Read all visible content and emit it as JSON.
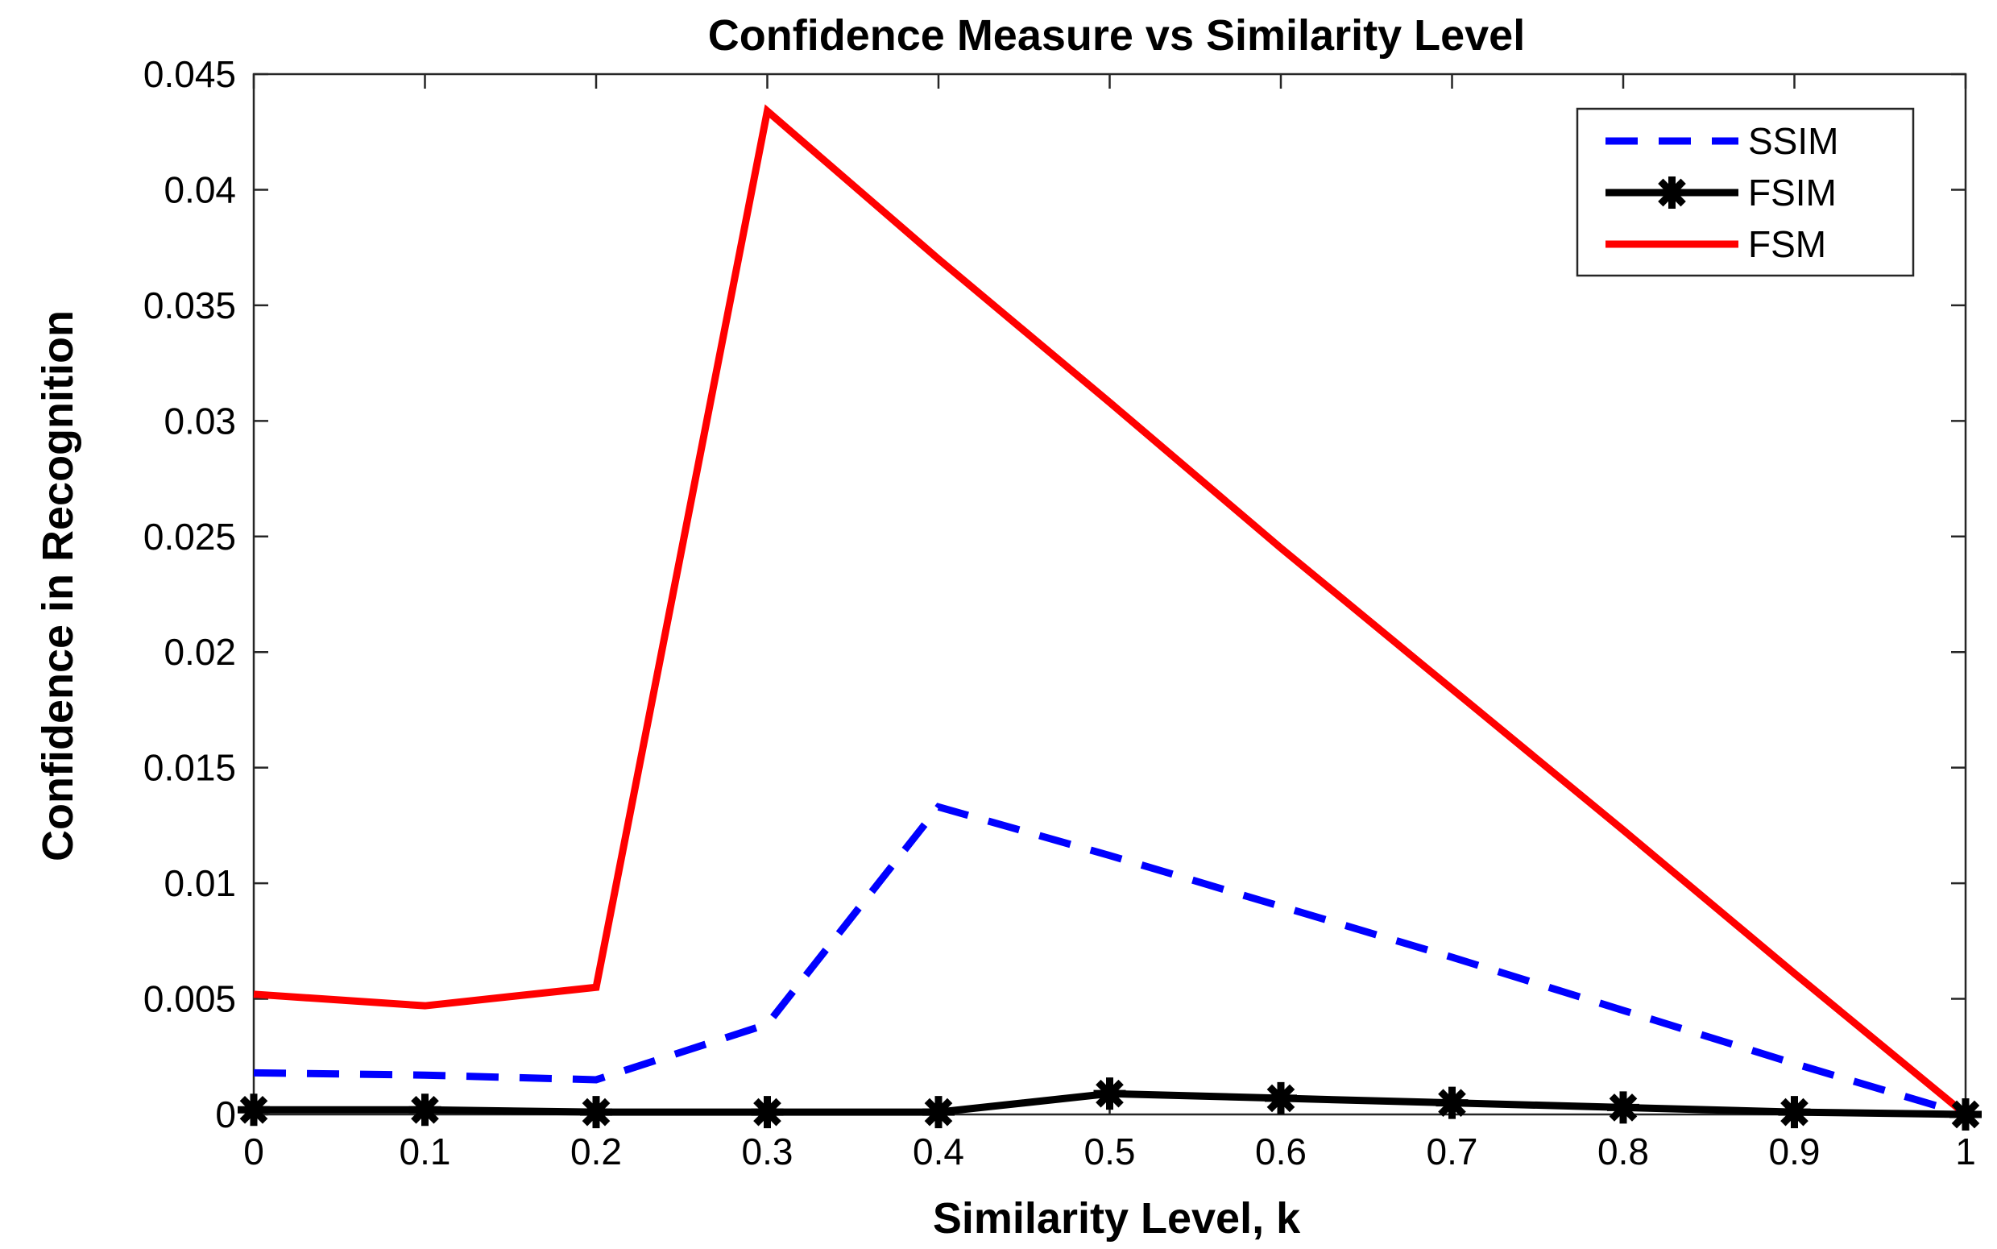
{
  "chart_data": {
    "type": "line",
    "title": "Confidence Measure vs Similarity Level",
    "xlabel": "Similarity Level, k",
    "ylabel": "Confidence in Recognition",
    "x": [
      0,
      0.1,
      0.2,
      0.3,
      0.4,
      0.5,
      0.6,
      0.7,
      0.8,
      0.9,
      1
    ],
    "xlim": [
      0,
      1
    ],
    "ylim": [
      0,
      0.045
    ],
    "xticks": [
      "0",
      "0.1",
      "0.2",
      "0.3",
      "0.4",
      "0.5",
      "0.6",
      "0.7",
      "0.8",
      "0.9",
      "1"
    ],
    "yticks": [
      "0",
      "0.005",
      "0.01",
      "0.015",
      "0.02",
      "0.025",
      "0.03",
      "0.035",
      "0.04",
      "0.045"
    ],
    "grid": false,
    "legend_position": "top-right",
    "series": [
      {
        "name": "SSIM",
        "color": "#0000ff",
        "style": "dashed",
        "values": [
          0.0018,
          0.0017,
          0.0015,
          0.0039,
          0.0133,
          0.0112,
          0.009,
          0.0068,
          0.0045,
          0.0022,
          0.0
        ]
      },
      {
        "name": "FSIM",
        "color": "#000000",
        "style": "solid-asterisk",
        "values": [
          0.0002,
          0.0002,
          0.0001,
          0.0001,
          0.0001,
          0.0009,
          0.0007,
          0.0005,
          0.0003,
          0.0001,
          0.0
        ]
      },
      {
        "name": "FSM",
        "color": "#ff0000",
        "style": "solid",
        "values": [
          0.0052,
          0.0047,
          0.0055,
          0.0434,
          0.037,
          0.0308,
          0.0245,
          0.0184,
          0.0123,
          0.0061,
          0.0
        ]
      }
    ]
  }
}
